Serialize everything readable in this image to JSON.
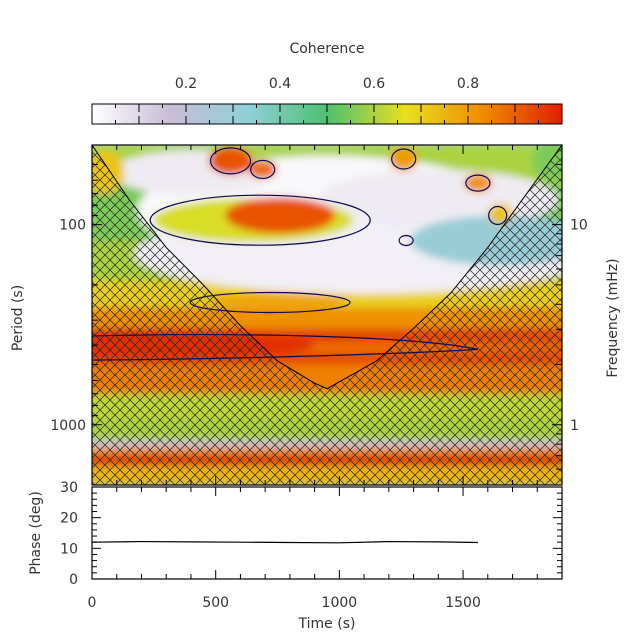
{
  "chart_data": [
    {
      "type": "heatmap",
      "panel": "coherence",
      "colorbar": {
        "title": "Coherence",
        "ticks": [
          0.2,
          0.4,
          0.6,
          0.8
        ],
        "tick_labels": [
          "0.2",
          "0.4",
          "0.6",
          "0.8"
        ],
        "range": [
          0.0,
          1.0
        ],
        "colors": [
          "#ffffff",
          "#c8bcd8",
          "#8fd0d8",
          "#4ec070",
          "#e8e020",
          "#f08a00",
          "#e02000"
        ]
      },
      "xlabel": "Time (s)",
      "x_ticks": [
        0,
        500,
        1000,
        1500
      ],
      "x_tick_labels": [
        "0",
        "500",
        "1000",
        "1500"
      ],
      "xlim": [
        0,
        1900
      ],
      "ylabel_left": "Period (s)",
      "y_scale": "log",
      "y_inverted": true,
      "ylim": [
        40,
        2000
      ],
      "y_ticks_left": [
        100,
        1000
      ],
      "y_tick_labels_left": [
        "100",
        "1000"
      ],
      "ylabel_right": "Frequency (mHz)",
      "y_ticks_right_mhz": [
        10,
        1
      ],
      "y_tick_labels_right": [
        "10",
        "1"
      ],
      "cone_of_influence": {
        "times": [
          0,
          150,
          300,
          450,
          600,
          750,
          900,
          950,
          1000,
          1150,
          1300,
          1450,
          1600,
          1750,
          1900
        ],
        "periods": [
          40,
          75,
          130,
          200,
          320,
          480,
          620,
          660,
          610,
          480,
          330,
          220,
          130,
          72,
          40
        ]
      },
      "features": [
        {
          "label": "significant band",
          "t_range": [
            0,
            1560
          ],
          "period_range": [
            360,
            480
          ],
          "coherence": 0.95
        },
        {
          "label": "blob",
          "t": 760,
          "period": 90,
          "coherence": 0.92
        },
        {
          "label": "blob",
          "t": 560,
          "period": 48,
          "coherence": 0.92
        },
        {
          "label": "blob",
          "t": 1260,
          "period": 47,
          "coherence": 0.8
        },
        {
          "label": "blob",
          "t": 1560,
          "period": 62,
          "coherence": 0.82
        }
      ],
      "horizontal_bands": [
        {
          "period": 1500,
          "coherence": 0.95
        },
        {
          "period": 1350,
          "coherence": 0.78
        },
        {
          "period": 1100,
          "coherence": 0.62
        }
      ]
    },
    {
      "type": "line",
      "panel": "phase",
      "ylabel": "Phase (deg)",
      "ylim": [
        0,
        30
      ],
      "y_ticks": [
        0,
        10,
        20,
        30
      ],
      "y_tick_labels": [
        "0",
        "10",
        "20",
        "30"
      ],
      "xlim": [
        0,
        1900
      ],
      "x": [
        0,
        200,
        400,
        600,
        800,
        1000,
        1200,
        1400,
        1560
      ],
      "y": [
        12,
        12.2,
        12.1,
        12.0,
        11.9,
        11.8,
        12.2,
        12.1,
        11.9
      ]
    }
  ]
}
